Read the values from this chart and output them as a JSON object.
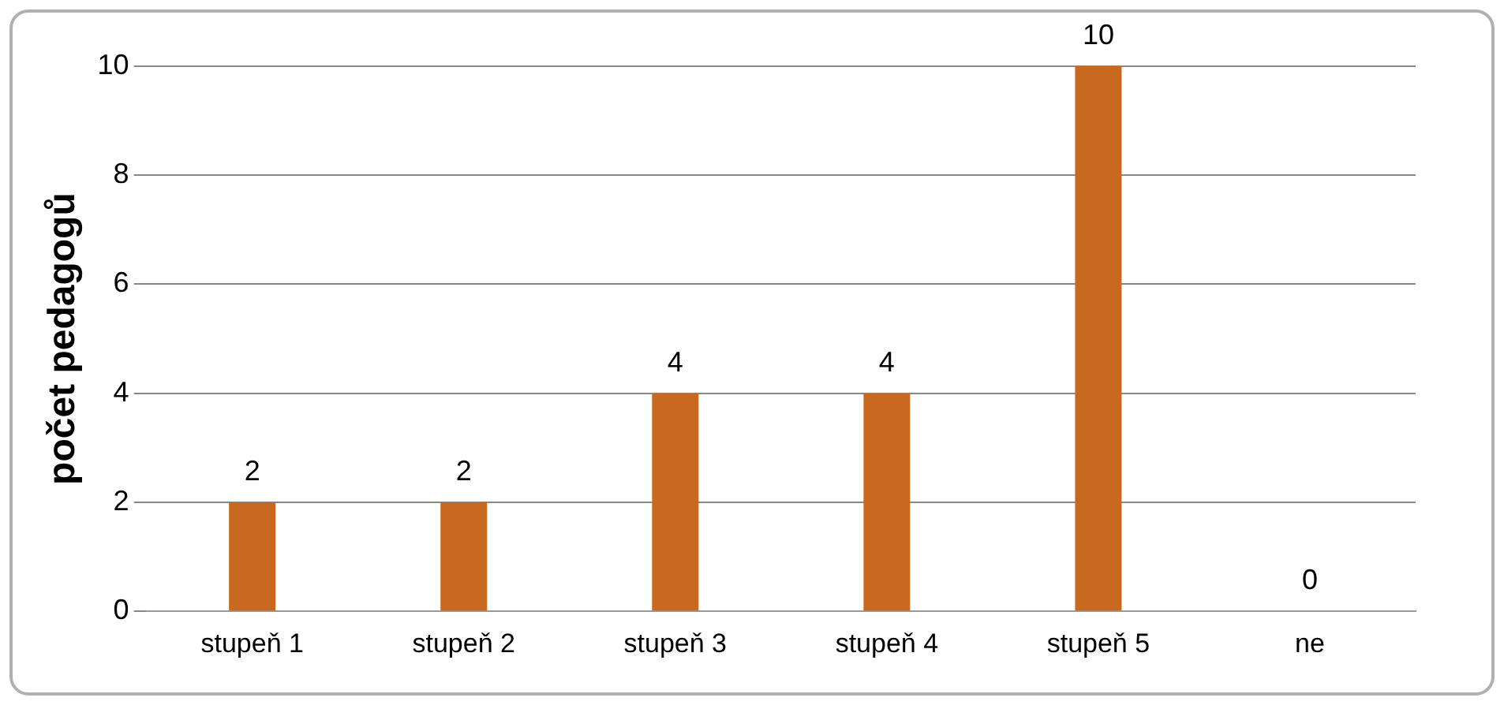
{
  "chart_data": {
    "type": "bar",
    "ylabel": "počet pedagogů",
    "categories": [
      "stupeň 1",
      "stupeň 2",
      "stupeň 3",
      "stupeň 4",
      "stupeň 5",
      "ne"
    ],
    "values": [
      2,
      2,
      4,
      4,
      10,
      0
    ],
    "color": "#c8691f",
    "ylim": [
      0,
      10
    ],
    "yticks": [
      0,
      2,
      4,
      6,
      8,
      10
    ],
    "grid": "y",
    "data_labels": true,
    "legend": false
  }
}
